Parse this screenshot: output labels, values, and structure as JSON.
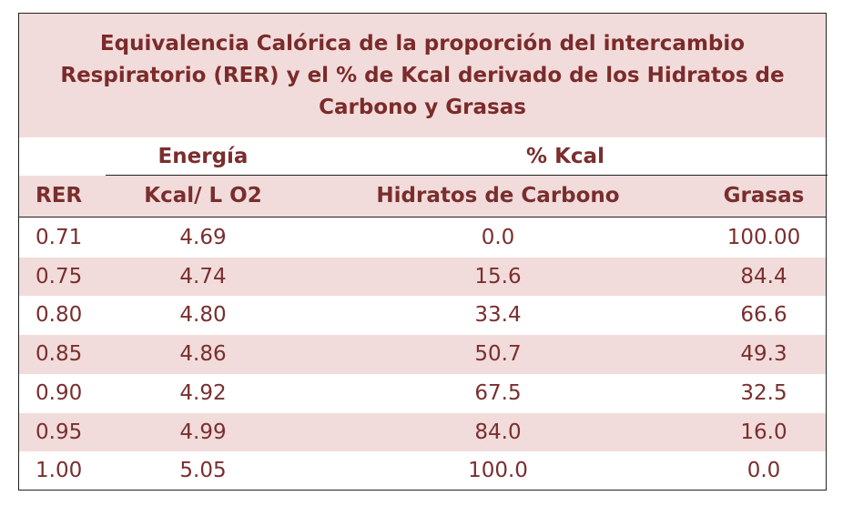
{
  "table": {
    "title_lines": [
      "Equivalencia Calórica de la proporción del intercambio",
      "Respiratorio (RER) y el % de Kcal derivado de los Hidratos de",
      "Carbono y Grasas"
    ],
    "group_headers": [
      "Energía",
      "% Kcal"
    ],
    "headers": [
      "RER",
      "Kcal/ L O2",
      "Hidratos de Carbono",
      "Grasas"
    ],
    "rows": [
      [
        "0.71",
        "4.69",
        "0.0",
        "100.00"
      ],
      [
        "0.75",
        "4.74",
        "15.6",
        "84.4"
      ],
      [
        "0.80",
        "4.80",
        "33.4",
        "66.6"
      ],
      [
        "0.85",
        "4.86",
        "50.7",
        "49.3"
      ],
      [
        "0.90",
        "4.92",
        "67.5",
        "32.5"
      ],
      [
        "0.95",
        "4.99",
        "84.0",
        "16.0"
      ],
      [
        "1.00",
        "5.05",
        "100.0",
        "0.0"
      ]
    ]
  }
}
